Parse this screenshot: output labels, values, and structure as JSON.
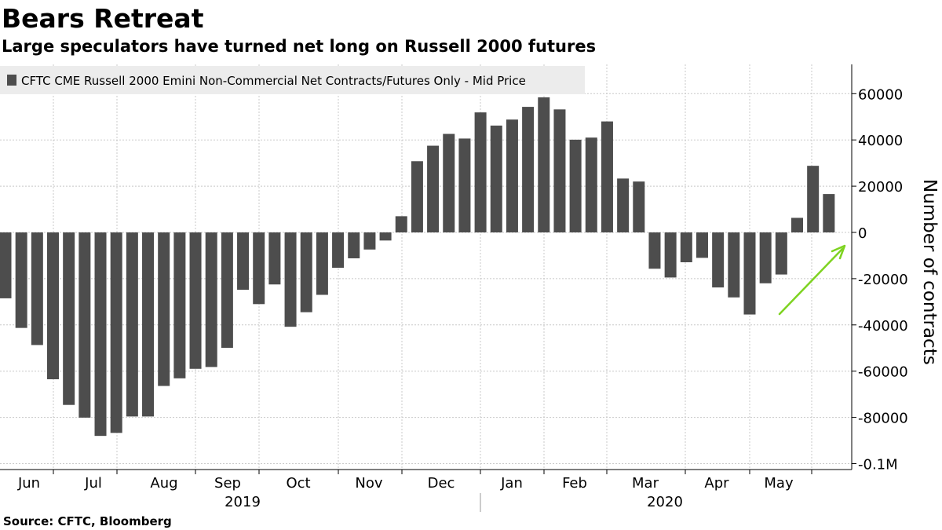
{
  "title": "Bears Retreat",
  "subtitle": "Large speculators have turned net long on Russell 2000 futures",
  "source": "Source: CFTC, Bloomberg",
  "chart_data": {
    "type": "bar",
    "legend": {
      "entries": [
        "CFTC CME Russell 2000 Emini Non-Commercial Net Contracts/Futures Only - Mid Price"
      ],
      "placement": "top-left"
    },
    "ylabel": "Number of contracts",
    "ylim": [
      -100000,
      70000
    ],
    "y_ticks": [
      60000,
      40000,
      20000,
      0,
      -20000,
      -40000,
      -60000,
      -80000,
      -100000
    ],
    "y_tick_labels": [
      "60000",
      "40000",
      "20000",
      "0",
      "-20000",
      "-40000",
      "-60000",
      "-80000",
      "-0.1M"
    ],
    "y_axis_side": "right",
    "grid": true,
    "month_labels": [
      "Jun",
      "Jul",
      "Aug",
      "Sep",
      "Oct",
      "Nov",
      "Dec",
      "Jan",
      "Feb",
      "Mar",
      "Apr",
      "May"
    ],
    "year_labels": [
      "2019",
      "2020"
    ],
    "series": [
      {
        "values": [
          -28500,
          -41300,
          -48700,
          -63500,
          -74600,
          -80100,
          -88000,
          -86700,
          -79600,
          -79600,
          -66400,
          -63100,
          -59000,
          -58200,
          -49900,
          -24800,
          -31000,
          -22500,
          -40800,
          -34500,
          -27000,
          -15300,
          -11200,
          -7400,
          -3500,
          7000,
          30800,
          37500,
          42600,
          40600,
          51900,
          46200,
          48800,
          54300,
          58400,
          53200,
          40100,
          41000,
          48000,
          23300,
          22000,
          -15700,
          -19500,
          -12900,
          -11000,
          -23800,
          -28100,
          -35500,
          -22000,
          -18200,
          6300,
          28800,
          16600
        ]
      }
    ],
    "annotations": [
      {
        "type": "arrow",
        "color": "#7ed321",
        "direction": "up-right"
      }
    ],
    "colors": {
      "bar": "#4d4d4d",
      "legend_bg": "#ececec",
      "gridline": "#c8c8c8",
      "arrow": "#7ed321"
    }
  }
}
